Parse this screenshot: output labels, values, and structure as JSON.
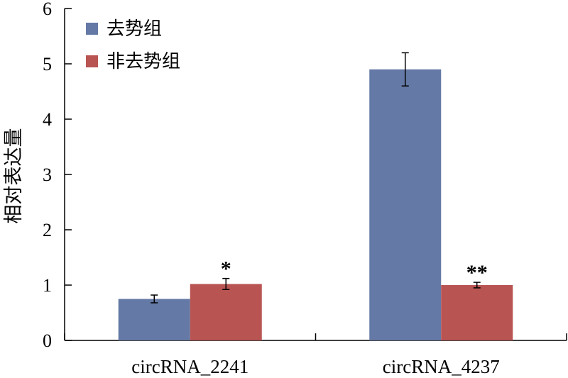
{
  "chart_data": {
    "type": "bar",
    "ylabel": "相对表达量",
    "xlabel": "",
    "ylim": [
      0,
      6
    ],
    "yticks": [
      0,
      1,
      2,
      3,
      4,
      5,
      6
    ],
    "grid": false,
    "legend_position": "top-left",
    "categories": [
      "circRNA_2241",
      "circRNA_4237"
    ],
    "series": [
      {
        "name": "去势组",
        "color": "#6479a5",
        "values": [
          0.75,
          4.9
        ],
        "errors": [
          0.07,
          0.3
        ]
      },
      {
        "name": "非去势组",
        "color": "#b85452",
        "values": [
          1.02,
          1.0
        ],
        "errors": [
          0.1,
          0.05
        ]
      }
    ],
    "annotations": [
      {
        "category": 0,
        "series": 1,
        "text": "*"
      },
      {
        "category": 1,
        "series": 1,
        "text": "**"
      }
    ]
  }
}
